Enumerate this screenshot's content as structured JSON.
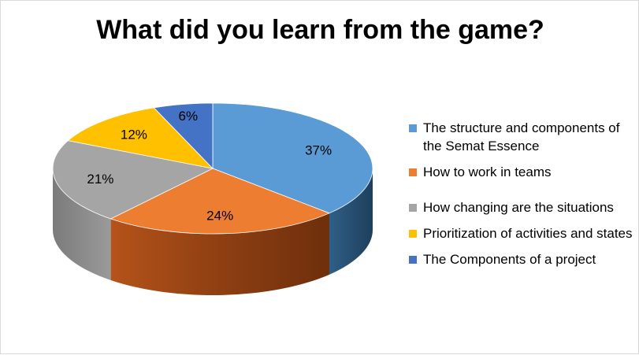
{
  "chart_data": {
    "type": "pie",
    "title": "What did you learn from the game?",
    "labels": [
      "The structure and components of the Semat Essence",
      "How to work in teams",
      "How changing are the situations",
      "Prioritization of activities and states",
      "The Components of a project"
    ],
    "values": [
      37,
      24,
      21,
      12,
      6
    ],
    "value_labels": [
      "37%",
      "24%",
      "21%",
      "12%",
      "6%"
    ],
    "colors": [
      "#5b9bd5",
      "#ed7d31",
      "#a5a5a5",
      "#ffc000",
      "#4472c4"
    ],
    "style": "3d",
    "legend_position": "right"
  }
}
